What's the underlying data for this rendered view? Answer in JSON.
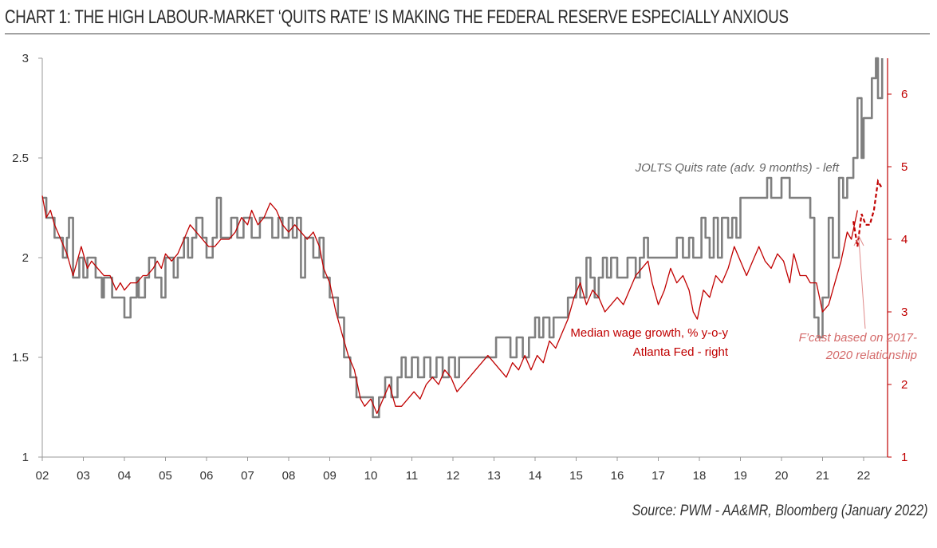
{
  "title": "CHART 1: THE HIGH LABOUR-MARKET ‘QUITS RATE’ IS MAKING THE FEDERAL RESERVE ESPECIALLY ANXIOUS",
  "source": "Source: PWM - AA&MR, Bloomberg (January 2022)",
  "colors": {
    "quits": "#7f7f7f",
    "wage": "#c00000",
    "forecast": "#c00000",
    "axis_left": "#999999",
    "axis_right": "#c00000"
  },
  "chart_data": {
    "type": "line",
    "x_axis": {
      "ticks": [
        "02",
        "03",
        "04",
        "05",
        "06",
        "07",
        "08",
        "09",
        "10",
        "11",
        "12",
        "13",
        "14",
        "15",
        "16",
        "17",
        "18",
        "19",
        "20",
        "21",
        "22"
      ],
      "range": [
        2002,
        2022.7
      ]
    },
    "y_left": {
      "ticks": [
        "1",
        "1.5",
        "2",
        "2.5",
        "3"
      ],
      "range": [
        1,
        3
      ]
    },
    "y_right": {
      "ticks": [
        "1",
        "2",
        "3",
        "4",
        "5",
        "6"
      ],
      "range": [
        1,
        6.5
      ]
    },
    "series": [
      {
        "name": "JOLTS Quits rate (adv. 9 months) - left",
        "axis": "left",
        "style": "step",
        "points": [
          [
            2002.0,
            2.3
          ],
          [
            2002.1,
            2.2
          ],
          [
            2002.3,
            2.1
          ],
          [
            2002.5,
            2.0
          ],
          [
            2002.6,
            2.1
          ],
          [
            2002.65,
            2.2
          ],
          [
            2002.75,
            1.9
          ],
          [
            2002.9,
            2.0
          ],
          [
            2003.0,
            1.9
          ],
          [
            2003.1,
            2.0
          ],
          [
            2003.3,
            1.9
          ],
          [
            2003.45,
            1.8
          ],
          [
            2003.5,
            1.9
          ],
          [
            2003.7,
            1.8
          ],
          [
            2003.9,
            1.8
          ],
          [
            2004.0,
            1.7
          ],
          [
            2004.15,
            1.8
          ],
          [
            2004.3,
            1.9
          ],
          [
            2004.35,
            1.8
          ],
          [
            2004.5,
            1.9
          ],
          [
            2004.6,
            2.0
          ],
          [
            2004.75,
            1.9
          ],
          [
            2004.9,
            1.8
          ],
          [
            2005.0,
            2.0
          ],
          [
            2005.2,
            1.9
          ],
          [
            2005.3,
            2.0
          ],
          [
            2005.45,
            2.1
          ],
          [
            2005.55,
            2.0
          ],
          [
            2005.65,
            2.1
          ],
          [
            2005.75,
            2.2
          ],
          [
            2005.9,
            2.1
          ],
          [
            2006.0,
            2.0
          ],
          [
            2006.15,
            2.1
          ],
          [
            2006.25,
            2.3
          ],
          [
            2006.35,
            2.1
          ],
          [
            2006.6,
            2.2
          ],
          [
            2006.75,
            2.1
          ],
          [
            2006.9,
            2.2
          ],
          [
            2007.1,
            2.1
          ],
          [
            2007.3,
            2.2
          ],
          [
            2007.5,
            2.2
          ],
          [
            2007.6,
            2.1
          ],
          [
            2007.75,
            2.2
          ],
          [
            2007.85,
            2.1
          ],
          [
            2008.0,
            2.2
          ],
          [
            2008.1,
            2.1
          ],
          [
            2008.2,
            2.2
          ],
          [
            2008.3,
            1.9
          ],
          [
            2008.4,
            2.1
          ],
          [
            2008.6,
            2.0
          ],
          [
            2008.75,
            2.1
          ],
          [
            2008.85,
            1.9
          ],
          [
            2009.0,
            1.8
          ],
          [
            2009.2,
            1.7
          ],
          [
            2009.35,
            1.5
          ],
          [
            2009.5,
            1.4
          ],
          [
            2009.65,
            1.3
          ],
          [
            2009.85,
            1.3
          ],
          [
            2010.05,
            1.2
          ],
          [
            2010.2,
            1.3
          ],
          [
            2010.35,
            1.4
          ],
          [
            2010.5,
            1.3
          ],
          [
            2010.65,
            1.4
          ],
          [
            2010.75,
            1.5
          ],
          [
            2010.85,
            1.4
          ],
          [
            2011.0,
            1.5
          ],
          [
            2011.15,
            1.4
          ],
          [
            2011.3,
            1.5
          ],
          [
            2011.45,
            1.4
          ],
          [
            2011.6,
            1.5
          ],
          [
            2011.75,
            1.4
          ],
          [
            2011.9,
            1.5
          ],
          [
            2012.05,
            1.4
          ],
          [
            2012.15,
            1.5
          ],
          [
            2012.5,
            1.5
          ],
          [
            2012.7,
            1.5
          ],
          [
            2012.9,
            1.5
          ],
          [
            2013.05,
            1.6
          ],
          [
            2013.4,
            1.5
          ],
          [
            2013.55,
            1.6
          ],
          [
            2013.7,
            1.5
          ],
          [
            2013.85,
            1.6
          ],
          [
            2014.0,
            1.7
          ],
          [
            2014.1,
            1.6
          ],
          [
            2014.2,
            1.7
          ],
          [
            2014.35,
            1.6
          ],
          [
            2014.45,
            1.7
          ],
          [
            2014.6,
            1.7
          ],
          [
            2014.8,
            1.8
          ],
          [
            2014.9,
            1.8
          ],
          [
            2015.0,
            1.9
          ],
          [
            2015.1,
            1.8
          ],
          [
            2015.25,
            2.0
          ],
          [
            2015.35,
            1.9
          ],
          [
            2015.45,
            1.8
          ],
          [
            2015.55,
            1.9
          ],
          [
            2015.65,
            2.0
          ],
          [
            2015.75,
            1.9
          ],
          [
            2015.85,
            2.0
          ],
          [
            2016.0,
            1.9
          ],
          [
            2016.25,
            2.0
          ],
          [
            2016.45,
            1.9
          ],
          [
            2016.55,
            2.0
          ],
          [
            2016.65,
            2.1
          ],
          [
            2016.75,
            2.0
          ],
          [
            2016.85,
            2.0
          ],
          [
            2017.3,
            2.0
          ],
          [
            2017.45,
            2.1
          ],
          [
            2017.6,
            2.0
          ],
          [
            2017.75,
            2.1
          ],
          [
            2017.85,
            2.0
          ],
          [
            2018.05,
            2.2
          ],
          [
            2018.15,
            2.1
          ],
          [
            2018.25,
            2.0
          ],
          [
            2018.35,
            2.2
          ],
          [
            2018.45,
            2.0
          ],
          [
            2018.55,
            2.2
          ],
          [
            2018.7,
            2.1
          ],
          [
            2018.8,
            2.2
          ],
          [
            2018.9,
            2.1
          ],
          [
            2019.0,
            2.3
          ],
          [
            2019.65,
            2.4
          ],
          [
            2019.75,
            2.3
          ],
          [
            2020.0,
            2.4
          ],
          [
            2020.2,
            2.3
          ],
          [
            2020.6,
            2.3
          ],
          [
            2020.7,
            2.2
          ],
          [
            2020.8,
            1.7
          ],
          [
            2020.9,
            1.6
          ],
          [
            2021.0,
            1.8
          ],
          [
            2021.15,
            2.2
          ],
          [
            2021.25,
            2.0
          ],
          [
            2021.4,
            2.4
          ],
          [
            2021.5,
            2.3
          ],
          [
            2021.6,
            2.4
          ],
          [
            2021.75,
            2.5
          ],
          [
            2021.85,
            2.8
          ],
          [
            2021.95,
            2.5
          ],
          [
            2022.0,
            2.7
          ],
          [
            2022.2,
            2.9
          ],
          [
            2022.3,
            3.0
          ],
          [
            2022.35,
            2.8
          ],
          [
            2022.45,
            3.0
          ]
        ]
      },
      {
        "name": "Median wage growth, % y-o-y\nAtlanta Fed - right",
        "label_lines": [
          "Median wage growth, % y-o-y",
          "Atlanta Fed - right"
        ],
        "axis": "right",
        "style": "line",
        "points": [
          [
            2002.0,
            4.6
          ],
          [
            2002.1,
            4.3
          ],
          [
            2002.2,
            4.4
          ],
          [
            2002.3,
            4.2
          ],
          [
            2002.45,
            4.0
          ],
          [
            2002.6,
            3.8
          ],
          [
            2002.75,
            3.5
          ],
          [
            2002.85,
            3.7
          ],
          [
            2002.95,
            3.9
          ],
          [
            2003.1,
            3.6
          ],
          [
            2003.2,
            3.7
          ],
          [
            2003.35,
            3.6
          ],
          [
            2003.5,
            3.5
          ],
          [
            2003.65,
            3.5
          ],
          [
            2003.8,
            3.3
          ],
          [
            2003.9,
            3.4
          ],
          [
            2004.0,
            3.3
          ],
          [
            2004.15,
            3.4
          ],
          [
            2004.3,
            3.4
          ],
          [
            2004.45,
            3.5
          ],
          [
            2004.55,
            3.5
          ],
          [
            2004.7,
            3.6
          ],
          [
            2004.8,
            3.7
          ],
          [
            2004.9,
            3.6
          ],
          [
            2005.0,
            3.8
          ],
          [
            2005.15,
            3.7
          ],
          [
            2005.3,
            3.8
          ],
          [
            2005.45,
            4.0
          ],
          [
            2005.6,
            4.2
          ],
          [
            2005.75,
            4.1
          ],
          [
            2005.9,
            4.0
          ],
          [
            2006.05,
            3.9
          ],
          [
            2006.2,
            3.9
          ],
          [
            2006.35,
            4.0
          ],
          [
            2006.55,
            4.0
          ],
          [
            2006.7,
            4.1
          ],
          [
            2006.85,
            4.3
          ],
          [
            2007.0,
            4.2
          ],
          [
            2007.1,
            4.4
          ],
          [
            2007.25,
            4.2
          ],
          [
            2007.4,
            4.3
          ],
          [
            2007.55,
            4.5
          ],
          [
            2007.7,
            4.4
          ],
          [
            2007.85,
            4.2
          ],
          [
            2008.0,
            4.1
          ],
          [
            2008.15,
            4.2
          ],
          [
            2008.3,
            4.1
          ],
          [
            2008.45,
            4.0
          ],
          [
            2008.6,
            4.1
          ],
          [
            2008.75,
            3.9
          ],
          [
            2008.85,
            3.6
          ],
          [
            2009.0,
            3.4
          ],
          [
            2009.15,
            3.0
          ],
          [
            2009.3,
            2.7
          ],
          [
            2009.45,
            2.4
          ],
          [
            2009.6,
            2.2
          ],
          [
            2009.75,
            1.8
          ],
          [
            2009.85,
            1.7
          ],
          [
            2010.0,
            1.8
          ],
          [
            2010.15,
            1.6
          ],
          [
            2010.3,
            1.8
          ],
          [
            2010.45,
            2.0
          ],
          [
            2010.6,
            1.7
          ],
          [
            2010.75,
            1.7
          ],
          [
            2010.9,
            1.8
          ],
          [
            2011.05,
            1.9
          ],
          [
            2011.2,
            1.8
          ],
          [
            2011.35,
            2.0
          ],
          [
            2011.5,
            2.1
          ],
          [
            2011.65,
            2.0
          ],
          [
            2011.8,
            2.2
          ],
          [
            2011.95,
            2.1
          ],
          [
            2012.1,
            1.9
          ],
          [
            2012.25,
            2.0
          ],
          [
            2012.4,
            2.1
          ],
          [
            2012.55,
            2.2
          ],
          [
            2012.7,
            2.3
          ],
          [
            2012.85,
            2.4
          ],
          [
            2013.0,
            2.3
          ],
          [
            2013.15,
            2.2
          ],
          [
            2013.3,
            2.1
          ],
          [
            2013.45,
            2.3
          ],
          [
            2013.6,
            2.2
          ],
          [
            2013.75,
            2.4
          ],
          [
            2013.9,
            2.2
          ],
          [
            2014.05,
            2.4
          ],
          [
            2014.2,
            2.3
          ],
          [
            2014.35,
            2.6
          ],
          [
            2014.5,
            2.5
          ],
          [
            2014.65,
            2.7
          ],
          [
            2014.8,
            2.9
          ],
          [
            2014.95,
            3.2
          ],
          [
            2015.1,
            3.4
          ],
          [
            2015.25,
            3.1
          ],
          [
            2015.4,
            3.3
          ],
          [
            2015.55,
            3.2
          ],
          [
            2015.7,
            3.0
          ],
          [
            2015.85,
            3.1
          ],
          [
            2016.0,
            3.2
          ],
          [
            2016.15,
            3.1
          ],
          [
            2016.3,
            3.3
          ],
          [
            2016.45,
            3.5
          ],
          [
            2016.6,
            3.6
          ],
          [
            2016.75,
            3.7
          ],
          [
            2016.85,
            3.4
          ],
          [
            2017.0,
            3.1
          ],
          [
            2017.15,
            3.3
          ],
          [
            2017.3,
            3.6
          ],
          [
            2017.45,
            3.4
          ],
          [
            2017.6,
            3.5
          ],
          [
            2017.75,
            3.3
          ],
          [
            2017.85,
            3.0
          ],
          [
            2017.95,
            2.9
          ],
          [
            2018.1,
            3.3
          ],
          [
            2018.25,
            3.2
          ],
          [
            2018.4,
            3.5
          ],
          [
            2018.55,
            3.4
          ],
          [
            2018.7,
            3.6
          ],
          [
            2018.85,
            3.9
          ],
          [
            2019.0,
            3.7
          ],
          [
            2019.15,
            3.5
          ],
          [
            2019.3,
            3.7
          ],
          [
            2019.45,
            3.9
          ],
          [
            2019.6,
            3.7
          ],
          [
            2019.75,
            3.6
          ],
          [
            2019.9,
            3.8
          ],
          [
            2020.05,
            3.7
          ],
          [
            2020.2,
            3.4
          ],
          [
            2020.3,
            3.8
          ],
          [
            2020.45,
            3.5
          ],
          [
            2020.6,
            3.5
          ],
          [
            2020.7,
            3.4
          ],
          [
            2020.85,
            3.4
          ],
          [
            2021.0,
            3.0
          ],
          [
            2021.15,
            3.1
          ],
          [
            2021.3,
            3.4
          ],
          [
            2021.45,
            3.7
          ],
          [
            2021.6,
            4.1
          ],
          [
            2021.7,
            4.0
          ],
          [
            2021.85,
            4.4
          ]
        ]
      },
      {
        "name": "F’cast based on 2017-\n2020 relationship",
        "label_lines": [
          "F’cast based on 2017-",
          "2020 relationship"
        ],
        "axis": "right",
        "style": "dashed",
        "points": [
          [
            2021.75,
            4.25
          ],
          [
            2021.85,
            3.9
          ],
          [
            2021.95,
            4.35
          ],
          [
            2022.05,
            4.2
          ],
          [
            2022.15,
            4.2
          ],
          [
            2022.25,
            4.4
          ],
          [
            2022.35,
            4.8
          ],
          [
            2022.45,
            4.7
          ]
        ]
      }
    ],
    "legend": "inline-labels",
    "grid": false
  }
}
